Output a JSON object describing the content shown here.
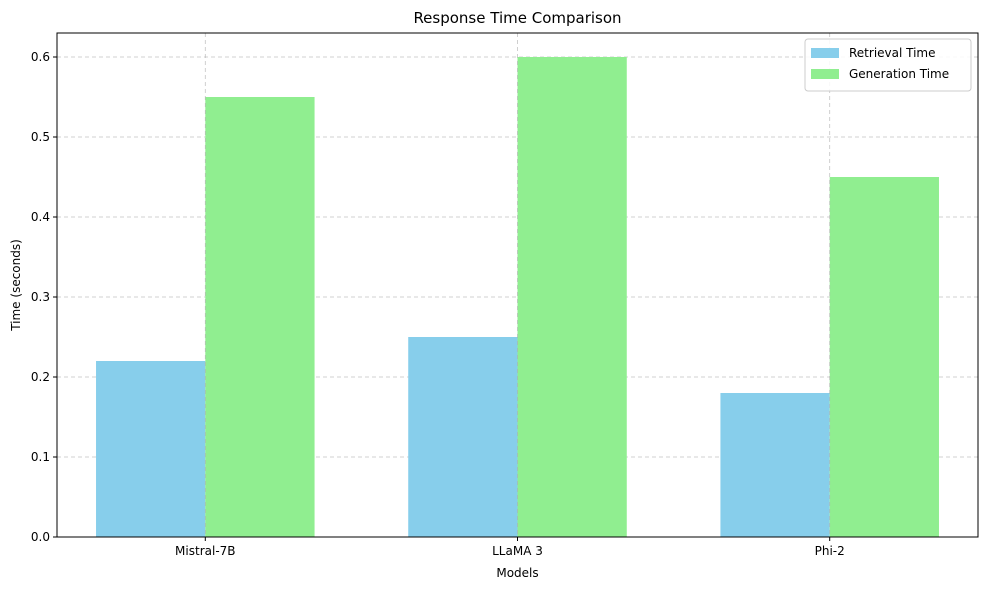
{
  "chart_data": {
    "type": "bar",
    "title": "Response Time Comparison",
    "xlabel": "Models",
    "ylabel": "Time (seconds)",
    "categories": [
      "Mistral-7B",
      "LLaMA 3",
      "Phi-2"
    ],
    "series": [
      {
        "name": "Retrieval Time",
        "values": [
          0.22,
          0.25,
          0.18
        ],
        "color": "#87ceeb"
      },
      {
        "name": "Generation Time",
        "values": [
          0.55,
          0.6,
          0.45
        ],
        "color": "#90ee90"
      }
    ],
    "ylim": [
      0,
      0.63
    ],
    "yticks": [
      "0.0",
      "0.1",
      "0.2",
      "0.3",
      "0.4",
      "0.5",
      "0.6"
    ],
    "grid": true,
    "legend_position": "top-right"
  }
}
